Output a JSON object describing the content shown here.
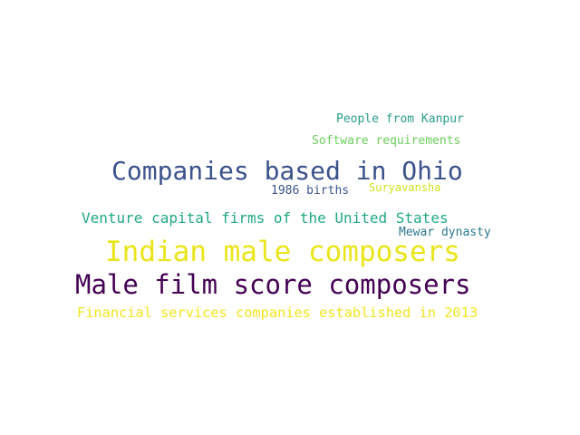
{
  "words": [
    {
      "text": "People from Kanpur",
      "color": "#2a9d8e"
    },
    {
      "text": "Software requirements",
      "color": "#6ccd5a"
    },
    {
      "text": "Companies based in Ohio",
      "color": "#3b528b"
    },
    {
      "text": "1986 births",
      "color": "#3b528b"
    },
    {
      "text": "Suryavansha",
      "color": "#d0e11c"
    },
    {
      "text": "Venture capital firms of the United States",
      "color": "#22a884"
    },
    {
      "text": "Mewar dynasty",
      "color": "#2a788e"
    },
    {
      "text": "Indian male composers",
      "color": "#e9e51a"
    },
    {
      "text": "Male film score composers",
      "color": "#440154"
    },
    {
      "text": "Financial services companies established in 2013",
      "color": "#f1e51d"
    }
  ]
}
